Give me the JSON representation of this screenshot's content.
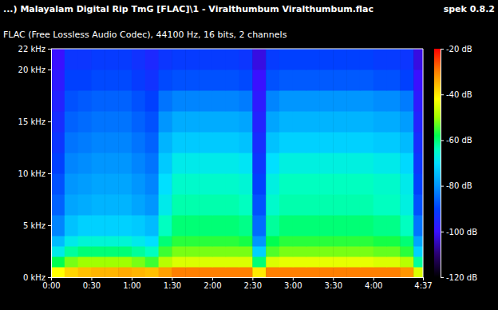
{
  "chart_data": {
    "type": "heatmap",
    "title": "...) Malayalam Digital Rip TmG [FLAC]\\1 - Viralthumbum Viralthumbum.flac",
    "subtitle": "FLAC (Free Lossless Audio Codec), 44100 Hz, 16 bits, 2 channels",
    "annotations": [
      "spek 0.8.2"
    ],
    "xlim": [
      0,
      277
    ],
    "ylim": [
      0,
      22
    ],
    "xticks": [
      {
        "value": 0,
        "label": "0:00"
      },
      {
        "value": 30,
        "label": "0:30"
      },
      {
        "value": 60,
        "label": "1:00"
      },
      {
        "value": 90,
        "label": "1:30"
      },
      {
        "value": 120,
        "label": "2:00"
      },
      {
        "value": 150,
        "label": "2:30"
      },
      {
        "value": 180,
        "label": "3:00"
      },
      {
        "value": 210,
        "label": "3:30"
      },
      {
        "value": 240,
        "label": "4:00"
      },
      {
        "value": 277,
        "label": "4:37"
      }
    ],
    "yticks": [
      {
        "value": 0,
        "label": "0 kHz"
      },
      {
        "value": 5,
        "label": "5 kHz"
      },
      {
        "value": 10,
        "label": "10 kHz"
      },
      {
        "value": 15,
        "label": "15 kHz"
      },
      {
        "value": 20,
        "label": "20 kHz"
      },
      {
        "value": 22,
        "label": "22 kHz"
      }
    ],
    "x_bins": [
      0,
      10,
      20,
      30,
      40,
      50,
      60,
      70,
      80,
      90,
      100,
      110,
      120,
      130,
      140,
      150,
      160,
      170,
      180,
      190,
      200,
      210,
      220,
      230,
      240,
      250,
      260,
      270,
      277
    ],
    "y_bins": [
      0,
      1,
      2,
      3,
      4,
      6,
      8,
      10,
      12,
      14,
      16,
      18,
      20,
      22
    ],
    "cells": [
      [
        -42,
        -38,
        -36,
        -35,
        -35,
        -34,
        -35,
        -36,
        -33,
        -30,
        -30,
        -30,
        -30,
        -30,
        -30,
        -40,
        -30,
        -30,
        -30,
        -30,
        -30,
        -30,
        -30,
        -30,
        -30,
        -30,
        -32,
        -45
      ],
      [
        -58,
        -52,
        -50,
        -50,
        -50,
        -50,
        -52,
        -55,
        -48,
        -45,
        -45,
        -45,
        -45,
        -45,
        -45,
        -60,
        -45,
        -44,
        -44,
        -44,
        -44,
        -44,
        -44,
        -44,
        -45,
        -45,
        -48,
        -62
      ],
      [
        -68,
        -62,
        -60,
        -60,
        -60,
        -60,
        -62,
        -64,
        -55,
        -52,
        -52,
        -52,
        -52,
        -52,
        -52,
        -72,
        -54,
        -52,
        -52,
        -52,
        -52,
        -52,
        -52,
        -52,
        -53,
        -53,
        -56,
        -72
      ],
      [
        -75,
        -68,
        -66,
        -66,
        -66,
        -66,
        -68,
        -70,
        -60,
        -56,
        -56,
        -56,
        -56,
        -56,
        -57,
        -80,
        -58,
        -56,
        -56,
        -56,
        -56,
        -56,
        -56,
        -56,
        -57,
        -57,
        -60,
        -78
      ],
      [
        -82,
        -74,
        -72,
        -72,
        -72,
        -72,
        -73,
        -75,
        -64,
        -60,
        -60,
        -60,
        -60,
        -60,
        -61,
        -85,
        -62,
        -60,
        -60,
        -60,
        -60,
        -60,
        -60,
        -60,
        -61,
        -61,
        -64,
        -84
      ],
      [
        -86,
        -78,
        -77,
        -76,
        -76,
        -76,
        -78,
        -80,
        -68,
        -63,
        -63,
        -63,
        -63,
        -63,
        -64,
        -88,
        -65,
        -63,
        -63,
        -63,
        -63,
        -63,
        -63,
        -63,
        -64,
        -64,
        -67,
        -88
      ],
      [
        -88,
        -80,
        -79,
        -78,
        -78,
        -78,
        -80,
        -82,
        -70,
        -65,
        -65,
        -65,
        -65,
        -65,
        -66,
        -90,
        -67,
        -64,
        -64,
        -64,
        -64,
        -64,
        -64,
        -64,
        -65,
        -65,
        -68,
        -90
      ],
      [
        -90,
        -82,
        -81,
        -80,
        -80,
        -80,
        -82,
        -84,
        -73,
        -68,
        -68,
        -68,
        -68,
        -68,
        -69,
        -92,
        -70,
        -67,
        -67,
        -67,
        -67,
        -67,
        -67,
        -67,
        -68,
        -68,
        -71,
        -92
      ],
      [
        -92,
        -84,
        -83,
        -82,
        -82,
        -82,
        -84,
        -86,
        -76,
        -73,
        -73,
        -73,
        -73,
        -73,
        -74,
        -94,
        -74,
        -72,
        -72,
        -72,
        -72,
        -72,
        -72,
        -72,
        -73,
        -73,
        -75,
        -94
      ],
      [
        -94,
        -86,
        -85,
        -84,
        -84,
        -84,
        -86,
        -88,
        -80,
        -77,
        -77,
        -77,
        -77,
        -77,
        -78,
        -96,
        -78,
        -76,
        -76,
        -76,
        -76,
        -76,
        -76,
        -76,
        -77,
        -77,
        -79,
        -96
      ],
      [
        -96,
        -88,
        -87,
        -86,
        -86,
        -86,
        -88,
        -90,
        -84,
        -82,
        -82,
        -82,
        -82,
        -82,
        -83,
        -98,
        -82,
        -80,
        -80,
        -80,
        -80,
        -80,
        -80,
        -80,
        -81,
        -81,
        -83,
        -98
      ],
      [
        -98,
        -90,
        -90,
        -89,
        -89,
        -89,
        -91,
        -93,
        -89,
        -88,
        -88,
        -88,
        -88,
        -88,
        -89,
        -100,
        -88,
        -87,
        -87,
        -87,
        -87,
        -87,
        -87,
        -87,
        -88,
        -88,
        -90,
        -100
      ],
      [
        -100,
        -92,
        -92,
        -91,
        -91,
        -91,
        -93,
        -95,
        -92,
        -91,
        -91,
        -91,
        -91,
        -91,
        -92,
        -102,
        -91,
        -90,
        -90,
        -90,
        -90,
        -90,
        -90,
        -90,
        -91,
        -91,
        -92,
        -102
      ]
    ],
    "colorbar": {
      "range": [
        -120,
        -20
      ],
      "ticks": [
        {
          "value": -20,
          "label": "-20 dB"
        },
        {
          "value": -40,
          "label": "-40 dB"
        },
        {
          "value": -60,
          "label": "-60 dB"
        },
        {
          "value": -80,
          "label": "-80 dB"
        },
        {
          "value": -100,
          "label": "-100 dB"
        },
        {
          "value": -120,
          "label": "-120 dB"
        }
      ]
    }
  }
}
